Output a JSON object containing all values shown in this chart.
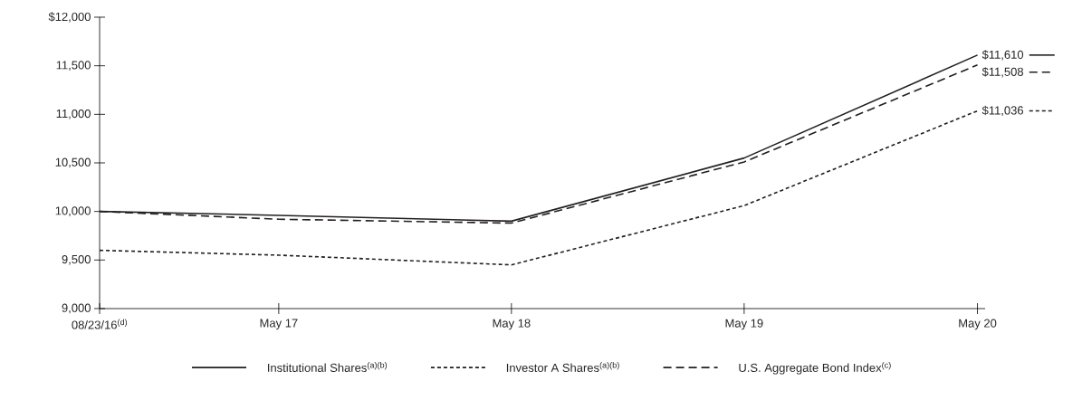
{
  "chart_data": {
    "type": "line",
    "x": [
      "2016-08-23",
      "2017-05-31",
      "2018-05-31",
      "2019-05-31",
      "2020-05-31"
    ],
    "series": [
      {
        "name": "Institutional Shares$^{(a)(b)}$",
        "color": "#231f20",
        "line_style": "solid",
        "values": [
          10000,
          9960,
          9900,
          10550,
          11610
        ]
      },
      {
        "name": "Investor A Shares$^{(a)(b)}$",
        "color": "#231f20",
        "line_style": "dotted",
        "values": [
          9600,
          9550,
          9450,
          10060,
          11036
        ]
      },
      {
        "name": "U.S. Aggregate Bond Index$^{(c)}$",
        "color": "#231f20",
        "line_style": "dashed",
        "values": [
          10000,
          9920,
          9880,
          10510,
          11508
        ]
      }
    ],
    "xlim": [
      "2016-08-23",
      "2020-06-12"
    ],
    "xticks": [
      {
        "value": "2016-08-23",
        "label": "08/23/16$^{(d)}$"
      },
      {
        "value": "2017-05-31",
        "label": "May 17"
      },
      {
        "value": "2018-05-31",
        "label": "May 18"
      },
      {
        "value": "2019-05-31",
        "label": "May 19"
      },
      {
        "value": "2020-05-31",
        "label": "May 20"
      }
    ],
    "ylim": [
      9000,
      12000
    ],
    "yticks": [
      {
        "value": 9000,
        "label": "9,000"
      },
      {
        "value": 9500,
        "label": "9,500"
      },
      {
        "value": 10000,
        "label": "10,000"
      },
      {
        "value": 10500,
        "label": "10,500"
      },
      {
        "value": 11000,
        "label": "11,000"
      },
      {
        "value": 11500,
        "label": "11,500"
      },
      {
        "value": 12000,
        "label": "$12,000"
      }
    ],
    "annotations": [
      {
        "text": "$11,610",
        "x": "2020-05-31",
        "y": 11610
      },
      {
        "text": "$11,508",
        "x": "2020-05-31",
        "y": 11508
      },
      {
        "text": "$11,036",
        "x": "2020-05-31",
        "y": 11036
      }
    ],
    "legend": "bottom",
    "grid": false,
    "marker": "none"
  }
}
